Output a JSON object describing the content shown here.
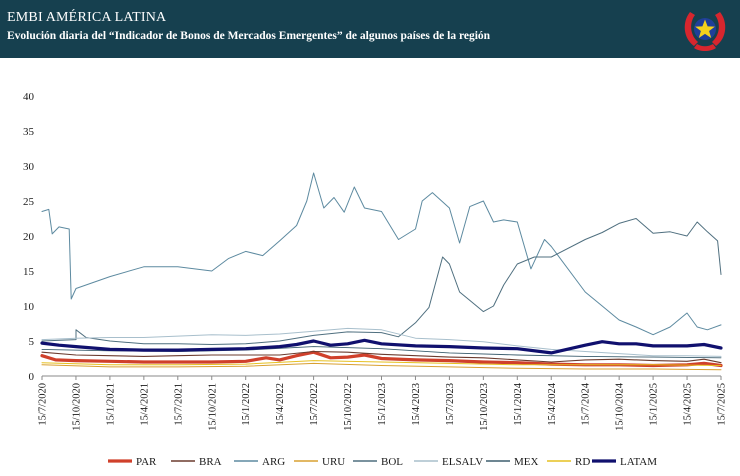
{
  "header": {
    "title": "EMBI AMÉRICA LATINA",
    "subtitle": "Evolución diaria del “Indicador de Bonos de Mercados Emergentes” de algunos países de la región",
    "logo_icon": "star-emblem-icon",
    "background": "#16404f"
  },
  "chart_data": {
    "type": "line",
    "title": "",
    "xlabel": "",
    "ylabel": "",
    "ylim": [
      0,
      40
    ],
    "yticks": [
      0,
      5,
      10,
      15,
      20,
      25,
      30,
      35,
      40
    ],
    "x_tick_labels": [
      "15/7/2020",
      "15/10/2020",
      "15/1/2021",
      "15/4/2021",
      "15/7/2021",
      "15/10/2021",
      "15/1/2022",
      "15/4/2022",
      "15/7/2022",
      "15/10/2022",
      "15/1/2023",
      "15/4/2023",
      "15/7/2023",
      "15/10/2023",
      "15/1/2024",
      "15/4/2024",
      "15/7/2024",
      "15/10/2024",
      "15/1/2025",
      "15/4/2025",
      "15/7/2025"
    ],
    "grid": false,
    "legend_position": "bottom",
    "series": [
      {
        "name": "PAR",
        "color": "#d0402b",
        "width": 3.2,
        "values": [
          [
            0,
            2.9
          ],
          [
            0.4,
            2.3
          ],
          [
            1,
            2.2
          ],
          [
            2,
            2.1
          ],
          [
            3,
            2.0
          ],
          [
            4,
            2.0
          ],
          [
            5,
            2.0
          ],
          [
            6,
            2.1
          ],
          [
            6.6,
            2.6
          ],
          [
            7,
            2.3
          ],
          [
            7.5,
            2.9
          ],
          [
            8,
            3.4
          ],
          [
            8.5,
            2.6
          ],
          [
            9,
            2.7
          ],
          [
            9.5,
            3.0
          ],
          [
            10,
            2.5
          ],
          [
            11,
            2.3
          ],
          [
            12,
            2.2
          ],
          [
            13,
            2.0
          ],
          [
            14,
            1.9
          ],
          [
            15,
            1.7
          ],
          [
            16,
            1.6
          ],
          [
            17,
            1.6
          ],
          [
            18,
            1.5
          ],
          [
            19,
            1.6
          ],
          [
            19.5,
            1.8
          ],
          [
            20,
            1.5
          ]
        ]
      },
      {
        "name": "BRA",
        "color": "#6b3b2e",
        "width": 1.1,
        "values": [
          [
            0,
            3.4
          ],
          [
            1,
            3.0
          ],
          [
            2,
            2.9
          ],
          [
            3,
            2.8
          ],
          [
            4,
            2.9
          ],
          [
            5,
            3.0
          ],
          [
            6,
            3.0
          ],
          [
            7,
            3.0
          ],
          [
            8,
            3.5
          ],
          [
            9,
            3.4
          ],
          [
            10,
            3.1
          ],
          [
            11,
            2.9
          ],
          [
            12,
            2.7
          ],
          [
            13,
            2.6
          ],
          [
            14,
            2.3
          ],
          [
            15,
            2.0
          ],
          [
            16,
            2.3
          ],
          [
            17,
            2.4
          ],
          [
            18,
            2.2
          ],
          [
            19,
            2.1
          ],
          [
            19.5,
            2.4
          ],
          [
            20,
            1.9
          ]
        ]
      },
      {
        "name": "ARG",
        "color": "#5d8aa0",
        "width": 1.0,
        "values": [
          [
            0,
            23.5
          ],
          [
            0.2,
            23.8
          ],
          [
            0.3,
            20.3
          ],
          [
            0.5,
            21.3
          ],
          [
            0.8,
            21.0
          ],
          [
            0.86,
            11.0
          ],
          [
            1,
            12.5
          ],
          [
            2,
            14.2
          ],
          [
            3,
            15.6
          ],
          [
            4,
            15.6
          ],
          [
            5,
            15.0
          ],
          [
            5.5,
            16.8
          ],
          [
            6,
            17.8
          ],
          [
            6.5,
            17.2
          ],
          [
            7,
            19.3
          ],
          [
            7.5,
            21.5
          ],
          [
            7.8,
            25.0
          ],
          [
            8,
            29.0
          ],
          [
            8.3,
            24.0
          ],
          [
            8.6,
            25.5
          ],
          [
            8.9,
            23.4
          ],
          [
            9.2,
            27.0
          ],
          [
            9.5,
            24.0
          ],
          [
            10,
            23.5
          ],
          [
            10.5,
            19.5
          ],
          [
            11,
            21.0
          ],
          [
            11.2,
            25.0
          ],
          [
            11.5,
            26.2
          ],
          [
            12,
            24.0
          ],
          [
            12.3,
            19.0
          ],
          [
            12.6,
            24.2
          ],
          [
            13,
            25.0
          ],
          [
            13.3,
            22.0
          ],
          [
            13.6,
            22.3
          ],
          [
            14,
            22.0
          ],
          [
            14.4,
            15.3
          ],
          [
            14.8,
            19.5
          ],
          [
            15,
            18.5
          ],
          [
            16,
            12.0
          ],
          [
            16.5,
            10.0
          ],
          [
            17,
            8.0
          ],
          [
            17.5,
            7.0
          ],
          [
            18,
            5.9
          ],
          [
            18.5,
            7.0
          ],
          [
            19,
            9.0
          ],
          [
            19.3,
            7.0
          ],
          [
            19.6,
            6.6
          ],
          [
            20,
            7.3
          ]
        ]
      },
      {
        "name": "URU",
        "color": "#d9a030",
        "width": 1.0,
        "values": [
          [
            0,
            1.6
          ],
          [
            2,
            1.3
          ],
          [
            4,
            1.3
          ],
          [
            6,
            1.4
          ],
          [
            8,
            1.8
          ],
          [
            10,
            1.5
          ],
          [
            12,
            1.3
          ],
          [
            14,
            1.1
          ],
          [
            16,
            1.0
          ],
          [
            18,
            1.0
          ],
          [
            20,
            0.9
          ]
        ]
      },
      {
        "name": "BOL",
        "color": "#4f6f7f",
        "width": 1.0,
        "values": [
          [
            0,
            5.0
          ],
          [
            1,
            5.2
          ],
          [
            1,
            6.6
          ],
          [
            1.3,
            5.5
          ],
          [
            2,
            5.0
          ],
          [
            3,
            4.6
          ],
          [
            4,
            4.6
          ],
          [
            5,
            4.5
          ],
          [
            6,
            4.6
          ],
          [
            7,
            5.0
          ],
          [
            8,
            5.8
          ],
          [
            9,
            6.3
          ],
          [
            10,
            6.2
          ],
          [
            10.5,
            5.6
          ],
          [
            11,
            7.6
          ],
          [
            11.4,
            9.8
          ],
          [
            11.8,
            17.0
          ],
          [
            12,
            16.0
          ],
          [
            12.3,
            12.0
          ],
          [
            12.6,
            10.8
          ],
          [
            13,
            9.2
          ],
          [
            13.3,
            10.0
          ],
          [
            13.6,
            13.0
          ],
          [
            14,
            16.0
          ],
          [
            14.5,
            17.0
          ],
          [
            15,
            17.0
          ],
          [
            16,
            19.5
          ],
          [
            16.5,
            20.5
          ],
          [
            17,
            21.8
          ],
          [
            17.5,
            22.5
          ],
          [
            18,
            20.4
          ],
          [
            18.5,
            20.6
          ],
          [
            19,
            20.0
          ],
          [
            19.3,
            22.0
          ],
          [
            19.6,
            20.6
          ],
          [
            19.9,
            19.3
          ],
          [
            20,
            14.5
          ]
        ]
      },
      {
        "name": "ELSALV",
        "color": "#a8bfcc",
        "width": 1.0,
        "values": [
          [
            0,
            5.2
          ],
          [
            1,
            5.4
          ],
          [
            2,
            5.5
          ],
          [
            3,
            5.5
          ],
          [
            4,
            5.7
          ],
          [
            5,
            5.9
          ],
          [
            6,
            5.8
          ],
          [
            7,
            6.0
          ],
          [
            8,
            6.4
          ],
          [
            9,
            6.8
          ],
          [
            10,
            6.6
          ],
          [
            11,
            5.4
          ],
          [
            12,
            5.2
          ],
          [
            13,
            4.9
          ],
          [
            14,
            4.3
          ],
          [
            15,
            3.8
          ],
          [
            16,
            3.5
          ],
          [
            17,
            3.2
          ],
          [
            18,
            2.9
          ],
          [
            19,
            2.9
          ],
          [
            20,
            2.8
          ]
        ]
      },
      {
        "name": "MEX",
        "color": "#3d5f6f",
        "width": 0.9,
        "values": [
          [
            0,
            3.8
          ],
          [
            2,
            3.6
          ],
          [
            4,
            3.5
          ],
          [
            6,
            3.7
          ],
          [
            8,
            4.2
          ],
          [
            10,
            3.9
          ],
          [
            12,
            3.3
          ],
          [
            14,
            3.0
          ],
          [
            16,
            2.8
          ],
          [
            18,
            2.7
          ],
          [
            20,
            2.6
          ]
        ]
      },
      {
        "name": "RD",
        "color": "#e6c020",
        "width": 1.0,
        "values": [
          [
            0,
            1.9
          ],
          [
            2,
            1.6
          ],
          [
            4,
            1.6
          ],
          [
            6,
            1.7
          ],
          [
            8,
            2.2
          ],
          [
            10,
            2.0
          ],
          [
            12,
            1.8
          ],
          [
            14,
            1.6
          ],
          [
            16,
            1.6
          ],
          [
            18,
            1.6
          ],
          [
            20,
            1.5
          ]
        ]
      },
      {
        "name": "LATAM",
        "color": "#10106e",
        "width": 3.2,
        "values": [
          [
            0,
            4.7
          ],
          [
            0.5,
            4.4
          ],
          [
            1,
            4.2
          ],
          [
            2,
            3.8
          ],
          [
            3,
            3.7
          ],
          [
            4,
            3.7
          ],
          [
            5,
            3.8
          ],
          [
            6,
            3.9
          ],
          [
            7,
            4.2
          ],
          [
            7.5,
            4.5
          ],
          [
            8,
            5.0
          ],
          [
            8.5,
            4.4
          ],
          [
            9,
            4.6
          ],
          [
            9.5,
            5.1
          ],
          [
            10,
            4.6
          ],
          [
            11,
            4.3
          ],
          [
            12,
            4.2
          ],
          [
            13,
            4.0
          ],
          [
            14,
            3.9
          ],
          [
            15,
            3.3
          ],
          [
            16,
            4.4
          ],
          [
            16.5,
            4.9
          ],
          [
            17,
            4.6
          ],
          [
            17.5,
            4.6
          ],
          [
            18,
            4.3
          ],
          [
            19,
            4.3
          ],
          [
            19.5,
            4.5
          ],
          [
            20,
            4.0
          ]
        ]
      }
    ]
  }
}
